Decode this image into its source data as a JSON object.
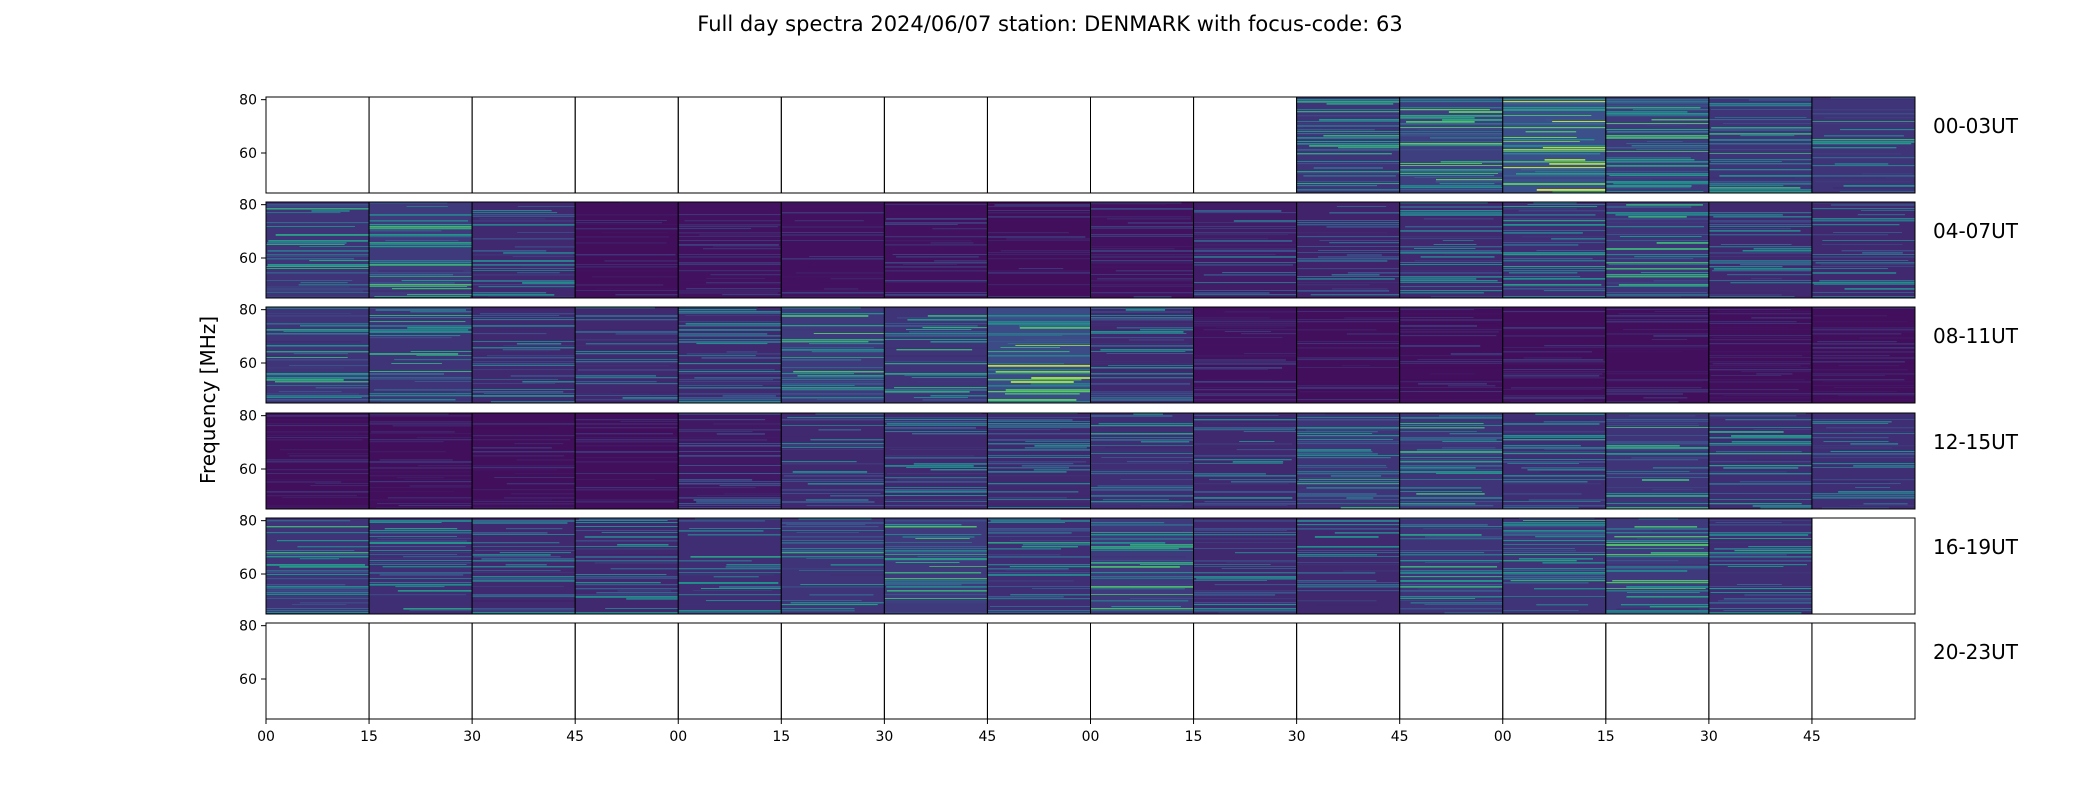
{
  "title": "Full day spectra 2024/06/07 station: DENMARK with focus-code: 63",
  "chart_data": {
    "type": "heatmap",
    "title": "Full day spectra 2024/06/07 station: DENMARK with focus-code: 63",
    "ylabel": "Frequency [MHz]",
    "xlabel": "",
    "ylim": [
      45,
      81
    ],
    "y_ticks": [
      "80",
      "60"
    ],
    "x_ticks": [
      "00",
      "15",
      "30",
      "45",
      "00",
      "15",
      "30",
      "45",
      "00",
      "15",
      "30",
      "45",
      "00",
      "15",
      "30",
      "45"
    ],
    "colormap": "viridis",
    "colors": {
      "low": "#440154",
      "mid": "#21918c",
      "high": "#fde725"
    },
    "rows": [
      {
        "label": "00-03UT",
        "panels": [
          0,
          0,
          0,
          0,
          0,
          0,
          0,
          0,
          0,
          0,
          1,
          1,
          1,
          1,
          1,
          1
        ],
        "activity": [
          0,
          0,
          0,
          0,
          0,
          0,
          0,
          0,
          0,
          0,
          0.45,
          0.55,
          0.7,
          0.5,
          0.45,
          0.45
        ]
      },
      {
        "label": "04-07UT",
        "panels": [
          1,
          1,
          1,
          1,
          1,
          1,
          1,
          1,
          1,
          1,
          1,
          1,
          1,
          1,
          1,
          1
        ],
        "activity": [
          0.45,
          0.5,
          0.35,
          0.12,
          0.15,
          0.15,
          0.15,
          0.12,
          0.15,
          0.25,
          0.3,
          0.35,
          0.4,
          0.45,
          0.35,
          0.35
        ]
      },
      {
        "label": "08-11UT",
        "panels": [
          1,
          1,
          1,
          1,
          1,
          1,
          1,
          1,
          1,
          1,
          1,
          1,
          1,
          1,
          1,
          1
        ],
        "activity": [
          0.45,
          0.45,
          0.35,
          0.35,
          0.35,
          0.5,
          0.45,
          0.65,
          0.35,
          0.15,
          0.12,
          0.12,
          0.12,
          0.12,
          0.12,
          0.12
        ]
      },
      {
        "label": "12-15UT",
        "panels": [
          1,
          1,
          1,
          1,
          1,
          1,
          1,
          1,
          1,
          1,
          1,
          1,
          1,
          1,
          1,
          1
        ],
        "activity": [
          0.12,
          0.12,
          0.12,
          0.12,
          0.2,
          0.35,
          0.35,
          0.35,
          0.4,
          0.35,
          0.45,
          0.45,
          0.4,
          0.45,
          0.4,
          0.4
        ]
      },
      {
        "label": "16-19UT",
        "panels": [
          1,
          1,
          1,
          1,
          1,
          1,
          1,
          1,
          1,
          1,
          1,
          1,
          1,
          1,
          1,
          0
        ],
        "activity": [
          0.45,
          0.4,
          0.35,
          0.35,
          0.4,
          0.45,
          0.5,
          0.4,
          0.5,
          0.35,
          0.35,
          0.45,
          0.45,
          0.5,
          0.4,
          0
        ]
      },
      {
        "label": "20-23UT",
        "panels": [
          0,
          0,
          0,
          0,
          0,
          0,
          0,
          0,
          0,
          0,
          0,
          0,
          0,
          0,
          0,
          0
        ],
        "activity": [
          0,
          0,
          0,
          0,
          0,
          0,
          0,
          0,
          0,
          0,
          0,
          0,
          0,
          0,
          0,
          0
        ]
      }
    ]
  }
}
